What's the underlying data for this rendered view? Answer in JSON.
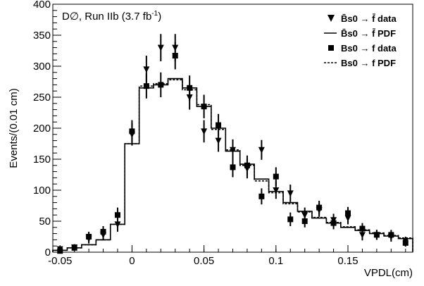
{
  "chart_data": {
    "type": "scatter",
    "title_main": "D∅, Run IIb (3.7 fb",
    "title_sup": "-1",
    "title_tail": ")",
    "xlabel": "VPDL(cm)",
    "ylabel": "Events/(0.01 cm)",
    "xlim": [
      -0.055,
      0.195
    ],
    "ylim": [
      0,
      400
    ],
    "x_ticks": [
      {
        "v": -0.05,
        "label": "-0.05"
      },
      {
        "v": 0,
        "label": "0"
      },
      {
        "v": 0.05,
        "label": "0.05"
      },
      {
        "v": 0.1,
        "label": "0.1"
      },
      {
        "v": 0.15,
        "label": "0.15"
      }
    ],
    "y_ticks": [
      {
        "v": 0,
        "label": "0"
      },
      {
        "v": 50,
        "label": "50"
      },
      {
        "v": 100,
        "label": "100"
      },
      {
        "v": 150,
        "label": "150"
      },
      {
        "v": 200,
        "label": "200"
      },
      {
        "v": 250,
        "label": "250"
      },
      {
        "v": 300,
        "label": "300"
      },
      {
        "v": 350,
        "label": "350"
      },
      {
        "v": 400,
        "label": "400"
      }
    ],
    "grid": false,
    "legend_position": "top-right",
    "legend": [
      {
        "marker": "triangle-down",
        "text": "B̄s0 → f̄ data"
      },
      {
        "marker": "solid-line",
        "text": "B̄s0 → f̄ PDF"
      },
      {
        "marker": "square",
        "text": "Bs0 → f data"
      },
      {
        "marker": "dashed-line",
        "text": "Bs0 → f PDF"
      }
    ],
    "series": [
      {
        "name": "B̄s0 → f̄ data",
        "marker": "triangle-down",
        "points": [
          {
            "x": -0.05,
            "y": 5,
            "err": 5
          },
          {
            "x": -0.04,
            "y": 8,
            "err": 5
          },
          {
            "x": -0.03,
            "y": 22,
            "err": 8
          },
          {
            "x": -0.02,
            "y": 28,
            "err": 9
          },
          {
            "x": -0.01,
            "y": 45,
            "err": 12
          },
          {
            "x": 0,
            "y": 190,
            "err": 18
          },
          {
            "x": 0.01,
            "y": 295,
            "err": 22
          },
          {
            "x": 0.02,
            "y": 330,
            "err": 22
          },
          {
            "x": 0.03,
            "y": 330,
            "err": 22
          },
          {
            "x": 0.04,
            "y": 250,
            "err": 20
          },
          {
            "x": 0.05,
            "y": 195,
            "err": 18
          },
          {
            "x": 0.06,
            "y": 180,
            "err": 18
          },
          {
            "x": 0.07,
            "y": 165,
            "err": 17
          },
          {
            "x": 0.08,
            "y": 135,
            "err": 16
          },
          {
            "x": 0.09,
            "y": 165,
            "err": 16
          },
          {
            "x": 0.1,
            "y": 100,
            "err": 14
          },
          {
            "x": 0.11,
            "y": 95,
            "err": 14
          },
          {
            "x": 0.12,
            "y": 60,
            "err": 12
          },
          {
            "x": 0.13,
            "y": 68,
            "err": 11
          },
          {
            "x": 0.14,
            "y": 52,
            "err": 10
          },
          {
            "x": 0.15,
            "y": 55,
            "err": 10
          },
          {
            "x": 0.16,
            "y": 28,
            "err": 9
          },
          {
            "x": 0.17,
            "y": 28,
            "err": 8
          },
          {
            "x": 0.18,
            "y": 25,
            "err": 8
          },
          {
            "x": 0.19,
            "y": 18,
            "err": 7
          }
        ]
      },
      {
        "name": "B̄s0 → f̄ PDF",
        "style": "solid",
        "bin_edges": [
          -0.055,
          -0.045,
          -0.035,
          -0.025,
          -0.015,
          -0.005,
          0.005,
          0.015,
          0.025,
          0.035,
          0.045,
          0.055,
          0.065,
          0.075,
          0.085,
          0.095,
          0.105,
          0.115,
          0.125,
          0.135,
          0.145,
          0.155,
          0.165,
          0.175,
          0.185,
          0.195
        ],
        "values": [
          3,
          7,
          12,
          20,
          45,
          175,
          265,
          270,
          280,
          265,
          235,
          200,
          163,
          142,
          118,
          98,
          80,
          66,
          55,
          47,
          40,
          35,
          30,
          26,
          22
        ]
      },
      {
        "name": "Bs0 → f data",
        "marker": "square",
        "points": [
          {
            "x": -0.05,
            "y": 2,
            "err": 5
          },
          {
            "x": -0.04,
            "y": 7,
            "err": 5
          },
          {
            "x": -0.03,
            "y": 25,
            "err": 8
          },
          {
            "x": -0.02,
            "y": 33,
            "err": 9
          },
          {
            "x": -0.01,
            "y": 60,
            "err": 12
          },
          {
            "x": 0,
            "y": 195,
            "err": 18
          },
          {
            "x": 0.01,
            "y": 268,
            "err": 20
          },
          {
            "x": 0.02,
            "y": 270,
            "err": 20
          },
          {
            "x": 0.03,
            "y": 317,
            "err": 22
          },
          {
            "x": 0.04,
            "y": 265,
            "err": 20
          },
          {
            "x": 0.05,
            "y": 235,
            "err": 19
          },
          {
            "x": 0.06,
            "y": 205,
            "err": 18
          },
          {
            "x": 0.07,
            "y": 137,
            "err": 16
          },
          {
            "x": 0.08,
            "y": 140,
            "err": 16
          },
          {
            "x": 0.09,
            "y": 90,
            "err": 13
          },
          {
            "x": 0.1,
            "y": 122,
            "err": 15
          },
          {
            "x": 0.11,
            "y": 53,
            "err": 11
          },
          {
            "x": 0.12,
            "y": 50,
            "err": 10
          },
          {
            "x": 0.13,
            "y": 72,
            "err": 11
          },
          {
            "x": 0.14,
            "y": 47,
            "err": 10
          },
          {
            "x": 0.15,
            "y": 63,
            "err": 10
          },
          {
            "x": 0.16,
            "y": 38,
            "err": 9
          },
          {
            "x": 0.17,
            "y": 28,
            "err": 8
          },
          {
            "x": 0.18,
            "y": 28,
            "err": 8
          },
          {
            "x": 0.19,
            "y": 15,
            "err": 6
          }
        ]
      },
      {
        "name": "Bs0 → f PDF",
        "style": "dashed",
        "bin_edges": [
          -0.055,
          -0.045,
          -0.035,
          -0.025,
          -0.015,
          -0.005,
          0.005,
          0.015,
          0.025,
          0.035,
          0.045,
          0.055,
          0.065,
          0.075,
          0.085,
          0.095,
          0.105,
          0.115,
          0.125,
          0.135,
          0.145,
          0.155,
          0.165,
          0.175,
          0.185,
          0.195
        ],
        "values": [
          3,
          7,
          12,
          20,
          45,
          175,
          268,
          272,
          278,
          262,
          238,
          198,
          165,
          140,
          115,
          96,
          78,
          65,
          56,
          48,
          41,
          36,
          31,
          27,
          23
        ]
      }
    ]
  }
}
